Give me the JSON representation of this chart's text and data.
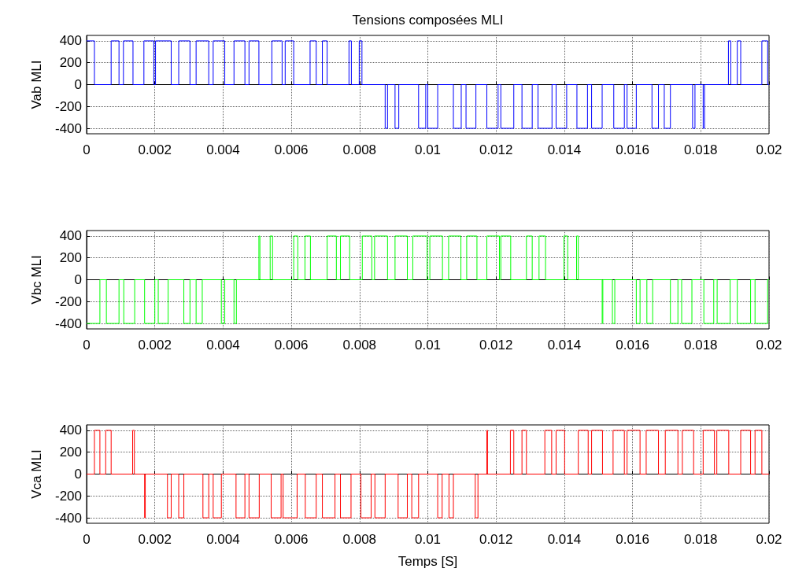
{
  "chart_data": [
    {
      "type": "step",
      "title": "Tensions composées MLI",
      "ylabel": "Vab MLI",
      "xlim": [
        0,
        0.02
      ],
      "xticks": [
        0,
        0.002,
        0.004,
        0.006,
        0.008,
        0.01,
        0.012,
        0.014,
        0.016,
        0.018,
        0.02
      ],
      "ylim": [
        -450,
        450
      ],
      "yticks": [
        -400,
        -200,
        0,
        200,
        400
      ],
      "grid": true,
      "marker": "none",
      "series": [
        {
          "color": "#0000ff",
          "x": [
            0,
            0.00023,
            0.00072,
            0.00095,
            0.00108,
            0.00136,
            0.00168,
            0.00197,
            0.00202,
            0.00248,
            0.0027,
            0.00303,
            0.00321,
            0.00358,
            0.00371,
            0.00405,
            0.00432,
            0.00464,
            0.00476,
            0.00505,
            0.00543,
            0.00573,
            0.00582,
            0.00607,
            0.00655,
            0.00673,
            0.00691,
            0.00705,
            0.00769,
            0.00776,
            0.00799,
            0.00807,
            0.00875,
            0.00882,
            0.00904,
            0.00915,
            0.00973,
            0.00994,
            0.01,
            0.01029,
            0.01075,
            0.01098,
            0.01112,
            0.01141,
            0.01173,
            0.01206,
            0.01214,
            0.01252,
            0.01276,
            0.01306,
            0.01323,
            0.01364,
            0.01376,
            0.01407,
            0.01437,
            0.01468,
            0.0148,
            0.01511,
            0.01545,
            0.01576,
            0.01584,
            0.01611,
            0.01657,
            0.01676,
            0.01693,
            0.01711,
            0.01776,
            0.01783,
            0.01807,
            0.01811,
            0.01881,
            0.01888,
            0.01907,
            0.01917,
            0.01979,
            0.01996,
            0.02
          ],
          "values": [
            400,
            0,
            400,
            0,
            400,
            0,
            400,
            0,
            400,
            0,
            400,
            0,
            400,
            0,
            400,
            0,
            400,
            0,
            400,
            0,
            400,
            0,
            400,
            0,
            400,
            0,
            400,
            0,
            400,
            0,
            400,
            0,
            -400,
            0,
            -400,
            0,
            -400,
            0,
            -400,
            0,
            -400,
            0,
            -400,
            0,
            -400,
            0,
            -400,
            0,
            -400,
            0,
            -400,
            0,
            -400,
            0,
            -400,
            0,
            -400,
            0,
            -400,
            0,
            -400,
            0,
            -400,
            0,
            -400,
            0,
            -400,
            0,
            -400,
            0,
            400,
            0,
            400,
            0,
            400,
            0,
            0
          ]
        }
      ]
    },
    {
      "type": "step",
      "ylabel": "Vbc MLI",
      "xlim": [
        0,
        0.02
      ],
      "xticks": [
        0,
        0.002,
        0.004,
        0.006,
        0.008,
        0.01,
        0.012,
        0.014,
        0.016,
        0.018,
        0.02
      ],
      "ylim": [
        -450,
        450
      ],
      "yticks": [
        -400,
        -200,
        0,
        200,
        400
      ],
      "grid": true,
      "marker": "none",
      "series": [
        {
          "color": "#00ff00",
          "x": [
            0,
            0.00039,
            0.00058,
            0.00095,
            0.00109,
            0.00141,
            0.0017,
            0.002,
            0.0021,
            0.00239,
            0.00285,
            0.00303,
            0.00321,
            0.00339,
            0.00395,
            0.00405,
            0.00432,
            0.00439,
            0.00505,
            0.00508,
            0.00538,
            0.00545,
            0.00607,
            0.00619,
            0.0064,
            0.00656,
            0.00705,
            0.00732,
            0.00744,
            0.00771,
            0.00808,
            0.00836,
            0.00844,
            0.00882,
            0.00904,
            0.0094,
            0.00956,
            0.00998,
            0.01006,
            0.01043,
            0.01061,
            0.01097,
            0.01114,
            0.01144,
            0.01173,
            0.0121,
            0.01214,
            0.01243,
            0.01289,
            0.01306,
            0.01326,
            0.01345,
            0.01399,
            0.0141,
            0.01436,
            0.01441,
            0.01511,
            0.01513,
            0.01541,
            0.01548,
            0.01611,
            0.01622,
            0.01642,
            0.01659,
            0.01711,
            0.01733,
            0.01744,
            0.01774,
            0.01809,
            0.01838,
            0.01848,
            0.01886,
            0.01907,
            0.01946,
            0.01959,
            0.01996,
            0.02
          ],
          "values": [
            -400,
            0,
            -400,
            0,
            -400,
            0,
            -400,
            0,
            -400,
            0,
            -400,
            0,
            -400,
            0,
            -400,
            0,
            -400,
            0,
            400,
            0,
            400,
            0,
            400,
            0,
            400,
            0,
            400,
            0,
            400,
            0,
            400,
            0,
            400,
            0,
            400,
            0,
            400,
            0,
            400,
            0,
            400,
            0,
            400,
            0,
            400,
            0,
            400,
            0,
            400,
            0,
            400,
            0,
            400,
            0,
            400,
            0,
            -400,
            0,
            -400,
            0,
            -400,
            0,
            -400,
            0,
            -400,
            0,
            -400,
            0,
            -400,
            0,
            -400,
            0,
            -400,
            0,
            -400,
            0,
            0
          ]
        }
      ]
    },
    {
      "type": "step",
      "ylabel": "Vca MLI",
      "xlabel": "Temps [S]",
      "xlim": [
        0,
        0.02
      ],
      "xticks": [
        0,
        0.002,
        0.004,
        0.006,
        0.008,
        0.01,
        0.012,
        0.014,
        0.016,
        0.018,
        0.02
      ],
      "ylim": [
        -450,
        450
      ],
      "yticks": [
        -400,
        -200,
        0,
        200,
        400
      ],
      "grid": true,
      "marker": "none",
      "series": [
        {
          "color": "#ff0000",
          "x": [
            0,
            0.00023,
            0.00039,
            0.00056,
            0.00072,
            0.00135,
            0.0014,
            0.0017,
            0.00172,
            0.00237,
            0.00248,
            0.0027,
            0.00285,
            0.00341,
            0.00358,
            0.00371,
            0.00395,
            0.00438,
            0.00464,
            0.00476,
            0.00506,
            0.00541,
            0.0057,
            0.00576,
            0.00617,
            0.00641,
            0.00673,
            0.00691,
            0.00728,
            0.00744,
            0.00775,
            0.00804,
            0.00834,
            0.00845,
            0.00875,
            0.00913,
            0.0094,
            0.00953,
            0.00973,
            0.01029,
            0.01042,
            0.01062,
            0.01075,
            0.01139,
            0.01147,
            0.01173,
            0.01175,
            0.01242,
            0.01252,
            0.01276,
            0.01289,
            0.01343,
            0.01363,
            0.01376,
            0.01401,
            0.01441,
            0.0147,
            0.0148,
            0.01512,
            0.01543,
            0.01576,
            0.01584,
            0.01622,
            0.0164,
            0.01676,
            0.01696,
            0.01733,
            0.01746,
            0.01779,
            0.01807,
            0.0184,
            0.01847,
            0.01882,
            0.01917,
            0.01946,
            0.01959,
            0.01979,
            0.02
          ],
          "values": [
            0,
            400,
            0,
            400,
            0,
            400,
            0,
            -400,
            0,
            -400,
            0,
            -400,
            0,
            -400,
            0,
            -400,
            0,
            -400,
            0,
            -400,
            0,
            -400,
            0,
            -400,
            0,
            -400,
            0,
            -400,
            0,
            -400,
            0,
            -400,
            0,
            -400,
            0,
            -400,
            0,
            -400,
            0,
            -400,
            0,
            -400,
            0,
            -400,
            0,
            400,
            0,
            400,
            0,
            400,
            0,
            400,
            0,
            400,
            0,
            400,
            0,
            400,
            0,
            400,
            0,
            400,
            0,
            400,
            0,
            400,
            0,
            400,
            0,
            400,
            0,
            400,
            0,
            400,
            0,
            400,
            0,
            0
          ]
        }
      ]
    }
  ]
}
